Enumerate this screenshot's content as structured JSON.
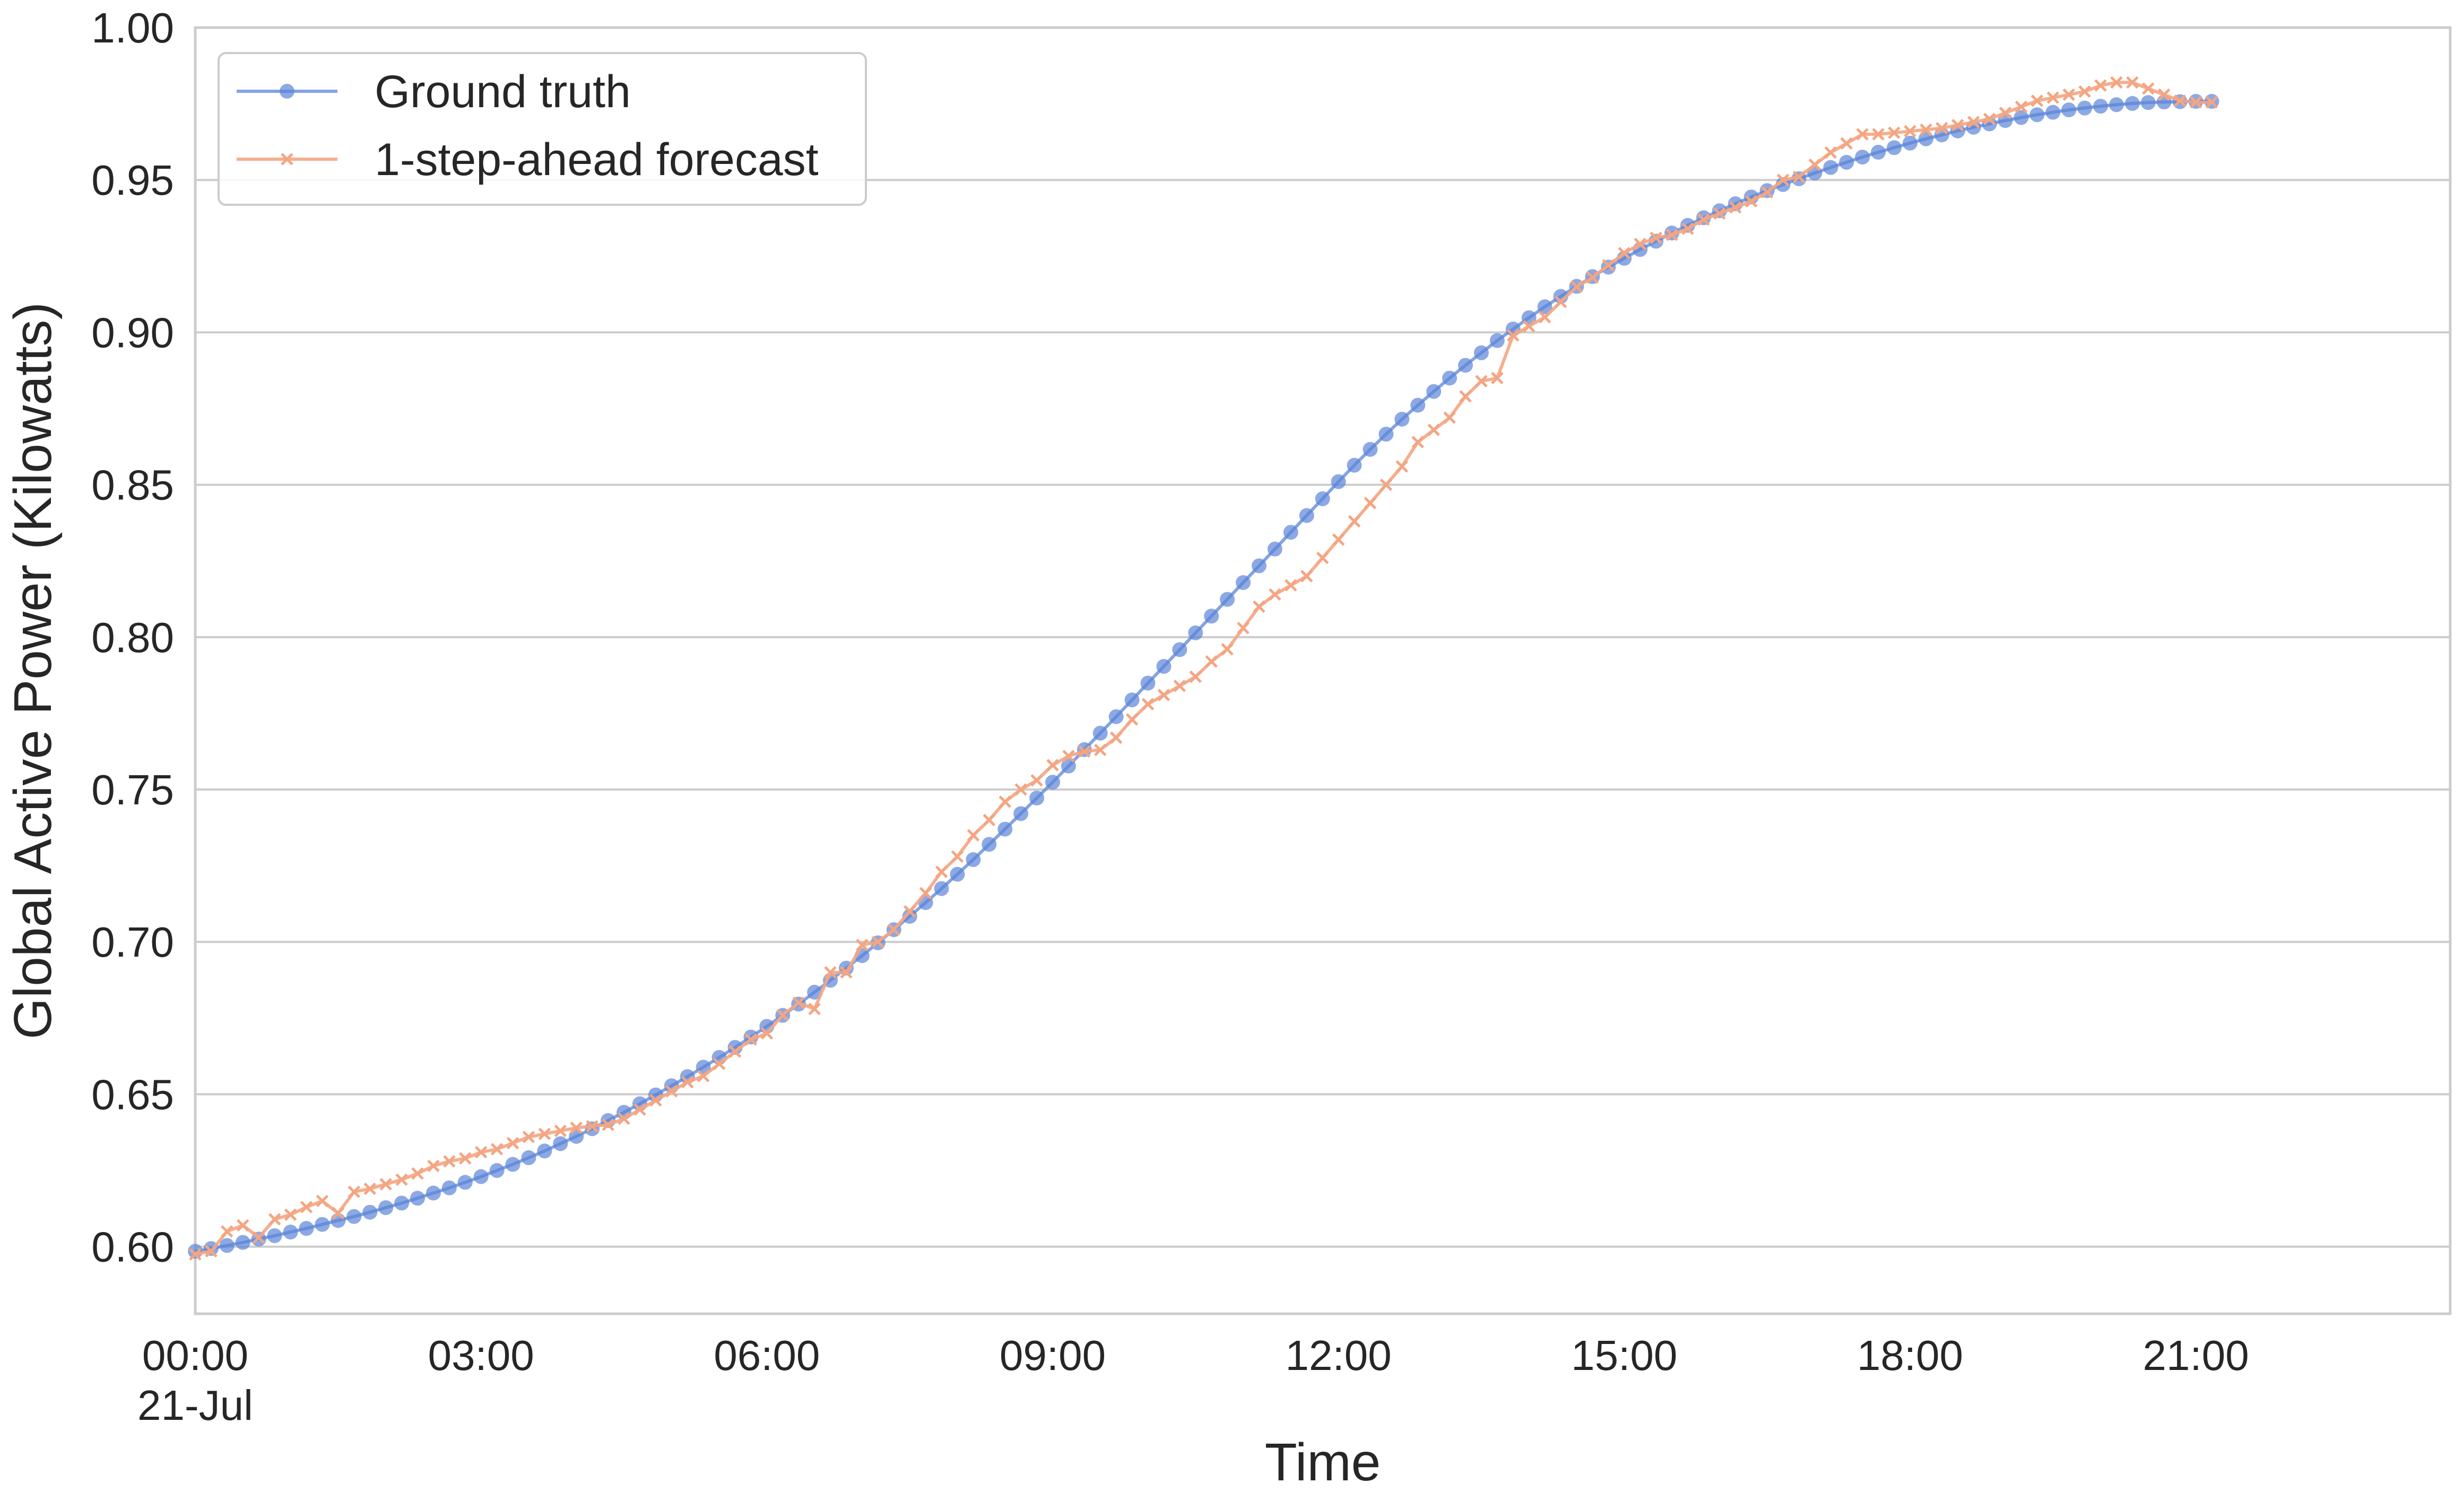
{
  "colors": {
    "ground_truth": "#5b84d8",
    "forecast": "#f4a582",
    "grid": "#cccccc",
    "text": "#262626"
  },
  "chart_data": {
    "type": "line",
    "xlabel": "Time",
    "ylabel": "Global Active Power (Kilowatts)",
    "x_tick_labels": [
      "00:00",
      "03:00",
      "06:00",
      "09:00",
      "12:00",
      "15:00",
      "18:00",
      "21:00"
    ],
    "x_tick_sublabel": "21-Jul",
    "y_tick_labels": [
      "0.60",
      "0.65",
      "0.70",
      "0.75",
      "0.80",
      "0.85",
      "0.90",
      "0.95",
      "1.00"
    ],
    "y_ticks": [
      0.6,
      0.65,
      0.7,
      0.75,
      0.8,
      0.85,
      0.9,
      0.95,
      1.0
    ],
    "ylim": [
      0.578,
      1.0
    ],
    "x_range_hours": [
      0,
      23.67
    ],
    "sample_interval_minutes": 10,
    "grid": "horizontal",
    "legend_position": "top-left",
    "series": [
      {
        "name": "Ground truth",
        "marker": "circle",
        "color": "#5b84d8",
        "values": [
          0.5985,
          0.5994,
          0.6004,
          0.6014,
          0.6025,
          0.6036,
          0.6048,
          0.606,
          0.6073,
          0.6086,
          0.6099,
          0.6113,
          0.6128,
          0.6143,
          0.6159,
          0.6176,
          0.6193,
          0.6211,
          0.623,
          0.625,
          0.627,
          0.6292,
          0.6314,
          0.6338,
          0.6362,
          0.6387,
          0.6414,
          0.6441,
          0.6469,
          0.6498,
          0.6528,
          0.6558,
          0.6589,
          0.6621,
          0.6654,
          0.6688,
          0.6723,
          0.6759,
          0.6796,
          0.6835,
          0.6874,
          0.6914,
          0.6955,
          0.6997,
          0.704,
          0.7084,
          0.7129,
          0.7175,
          0.7222,
          0.727,
          0.732,
          0.737,
          0.7421,
          0.7472,
          0.7524,
          0.7577,
          0.7631,
          0.7685,
          0.7739,
          0.7794,
          0.7849,
          0.7904,
          0.7959,
          0.8014,
          0.8069,
          0.8124,
          0.8179,
          0.8234,
          0.8289,
          0.8344,
          0.8399,
          0.8454,
          0.851,
          0.8564,
          0.8616,
          0.8666,
          0.8715,
          0.8761,
          0.8806,
          0.885,
          0.8892,
          0.8933,
          0.8973,
          0.9011,
          0.9048,
          0.9084,
          0.9118,
          0.9151,
          0.9183,
          0.9214,
          0.9243,
          0.9272,
          0.9299,
          0.9326,
          0.9351,
          0.9376,
          0.9399,
          0.9422,
          0.9444,
          0.9465,
          0.9485,
          0.9504,
          0.9523,
          0.9541,
          0.9558,
          0.9575,
          0.9591,
          0.9606,
          0.9621,
          0.9635,
          0.9648,
          0.9661,
          0.9673,
          0.9684,
          0.9695,
          0.9705,
          0.9714,
          0.9722,
          0.973,
          0.9736,
          0.9742,
          0.9747,
          0.9751,
          0.9754,
          0.9756,
          0.9757,
          0.9758,
          0.9758
        ]
      },
      {
        "name": "1-step-ahead forecast",
        "marker": "x",
        "color": "#f4a582",
        "values": [
          0.5975,
          0.5985,
          0.605,
          0.607,
          0.603,
          0.609,
          0.6105,
          0.613,
          0.615,
          0.611,
          0.618,
          0.619,
          0.6205,
          0.622,
          0.624,
          0.6265,
          0.628,
          0.629,
          0.631,
          0.632,
          0.634,
          0.636,
          0.637,
          0.638,
          0.639,
          0.6395,
          0.64,
          0.642,
          0.645,
          0.648,
          0.651,
          0.654,
          0.656,
          0.66,
          0.664,
          0.668,
          0.67,
          0.676,
          0.68,
          0.678,
          0.69,
          0.69,
          0.699,
          0.7,
          0.704,
          0.71,
          0.716,
          0.723,
          0.728,
          0.735,
          0.74,
          0.746,
          0.75,
          0.753,
          0.758,
          0.761,
          0.7625,
          0.763,
          0.767,
          0.773,
          0.778,
          0.781,
          0.784,
          0.787,
          0.792,
          0.796,
          0.803,
          0.81,
          0.814,
          0.817,
          0.82,
          0.826,
          0.832,
          0.838,
          0.844,
          0.85,
          0.856,
          0.864,
          0.868,
          0.872,
          0.879,
          0.884,
          0.885,
          0.899,
          0.902,
          0.905,
          0.91,
          0.915,
          0.918,
          0.922,
          0.926,
          0.929,
          0.931,
          0.932,
          0.934,
          0.937,
          0.939,
          0.941,
          0.943,
          0.946,
          0.95,
          0.951,
          0.955,
          0.959,
          0.962,
          0.965,
          0.965,
          0.9655,
          0.966,
          0.9665,
          0.967,
          0.968,
          0.969,
          0.97,
          0.972,
          0.974,
          0.976,
          0.977,
          0.978,
          0.979,
          0.981,
          0.982,
          0.982,
          0.98,
          0.978,
          0.976,
          0.9755,
          0.9755
        ]
      }
    ]
  }
}
